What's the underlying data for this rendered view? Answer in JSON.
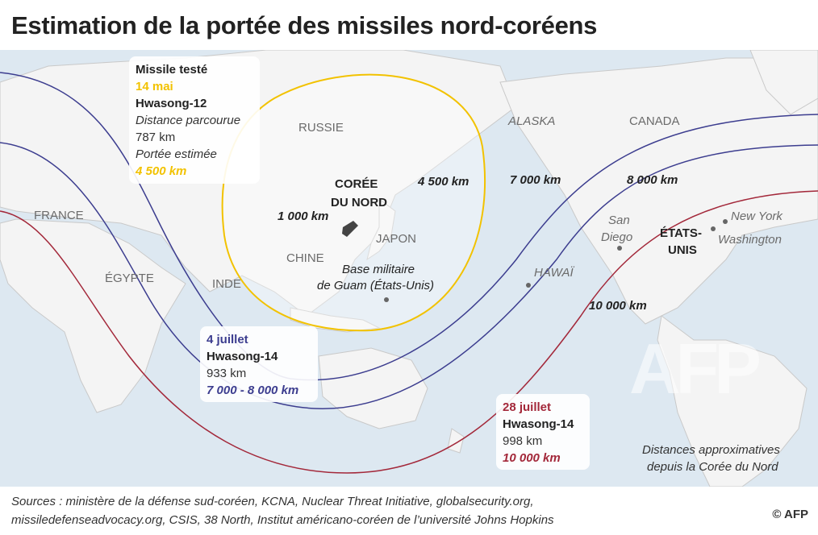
{
  "title": "Estimation de la portée des missiles nord-coréens",
  "labels": {
    "russie": "RUSSIE",
    "alaska": "ALASKA",
    "canada": "CANADA",
    "france": "FRANCE",
    "egypte": "ÉGYPTE",
    "inde": "INDE",
    "chine": "CHINE",
    "japon": "JAPON",
    "coree_l1": "CORÉE",
    "coree_l2": "DU NORD",
    "km1000": "1 000 km",
    "km4500": "4 500 km",
    "km7000": "7 000 km",
    "km8000": "8 000 km",
    "km10000": "10 000 km",
    "guam_l1": "Base militaire",
    "guam_l2": "de Guam (États-Unis)",
    "hawai": "HAWAÏ",
    "sandiego_l1": "San",
    "sandiego_l2": "Diego",
    "usa_l1": "ÉTATS-",
    "usa_l2": "UNIS",
    "newyork": "New York",
    "washington": "Washington"
  },
  "cards": {
    "may": {
      "heading": "Missile testé",
      "date": "14 mai",
      "name": "Hwasong-12",
      "distance_label": "Distance parcourue",
      "distance": "787 km",
      "range_label": "Portée estimée",
      "range": "4 500 km"
    },
    "july4": {
      "date": "4 juillet",
      "name": "Hwasong-14",
      "distance": "933 km",
      "range": "7 000 - 8 000 km"
    },
    "july28": {
      "date": "28 juillet",
      "name": "Hwasong-14",
      "distance": "998 km",
      "range": "10 000 km"
    }
  },
  "note_l1": "Distances approximatives",
  "note_l2": "depuis la Corée du Nord",
  "sources_l1": "Sources : ministère de la défense sud-coréen, KCNA, Nuclear Threat Initiative, globalsecurity.org,",
  "sources_l2": "missiledefenseadvocacy.org, CSIS, 38 North, Institut américano-coréen de l’université Johns Hopkins",
  "credit": "© AFP",
  "watermark": "AFP",
  "colors": {
    "yellow": "#f2c200",
    "blue": "#3c3d8f",
    "red": "#a3283a",
    "ocean": "#dde8f1",
    "land": "#f3f3f3"
  }
}
